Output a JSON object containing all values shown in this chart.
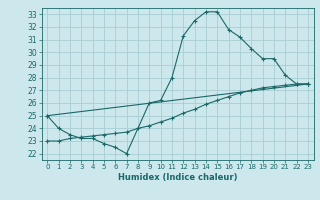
{
  "title": "",
  "xlabel": "Humidex (Indice chaleur)",
  "bg_color": "#cde8ec",
  "grid_color": "#a8cdd4",
  "line_color": "#1a6868",
  "xlim": [
    -0.5,
    23.5
  ],
  "ylim": [
    21.5,
    33.5
  ],
  "xticks": [
    0,
    1,
    2,
    3,
    4,
    5,
    6,
    7,
    8,
    9,
    10,
    11,
    12,
    13,
    14,
    15,
    16,
    17,
    18,
    19,
    20,
    21,
    22,
    23
  ],
  "yticks": [
    22,
    23,
    24,
    25,
    26,
    27,
    28,
    29,
    30,
    31,
    32,
    33
  ],
  "curve1_x": [
    0,
    1,
    2,
    3,
    4,
    5,
    6,
    7,
    9,
    10,
    11,
    12,
    13,
    14,
    15,
    16,
    17,
    18,
    19,
    20,
    21,
    22,
    23
  ],
  "curve1_y": [
    25.0,
    24.0,
    23.5,
    23.2,
    23.2,
    22.8,
    22.5,
    22.0,
    26.0,
    26.2,
    28.0,
    31.3,
    32.5,
    33.2,
    33.2,
    31.8,
    31.2,
    30.3,
    29.5,
    29.5,
    28.2,
    27.5,
    27.5
  ],
  "curve2_x": [
    0,
    1,
    2,
    3,
    4,
    5,
    6,
    7,
    8,
    9,
    10,
    11,
    12,
    13,
    14,
    15,
    16,
    17,
    18,
    19,
    20,
    21,
    22,
    23
  ],
  "curve2_y": [
    23.0,
    23.0,
    23.2,
    23.3,
    23.4,
    23.5,
    23.6,
    23.7,
    24.0,
    24.2,
    24.5,
    24.8,
    25.2,
    25.5,
    25.9,
    26.2,
    26.5,
    26.8,
    27.0,
    27.2,
    27.3,
    27.4,
    27.5,
    27.5
  ],
  "curve3_x": [
    0,
    23
  ],
  "curve3_y": [
    25.0,
    27.5
  ]
}
